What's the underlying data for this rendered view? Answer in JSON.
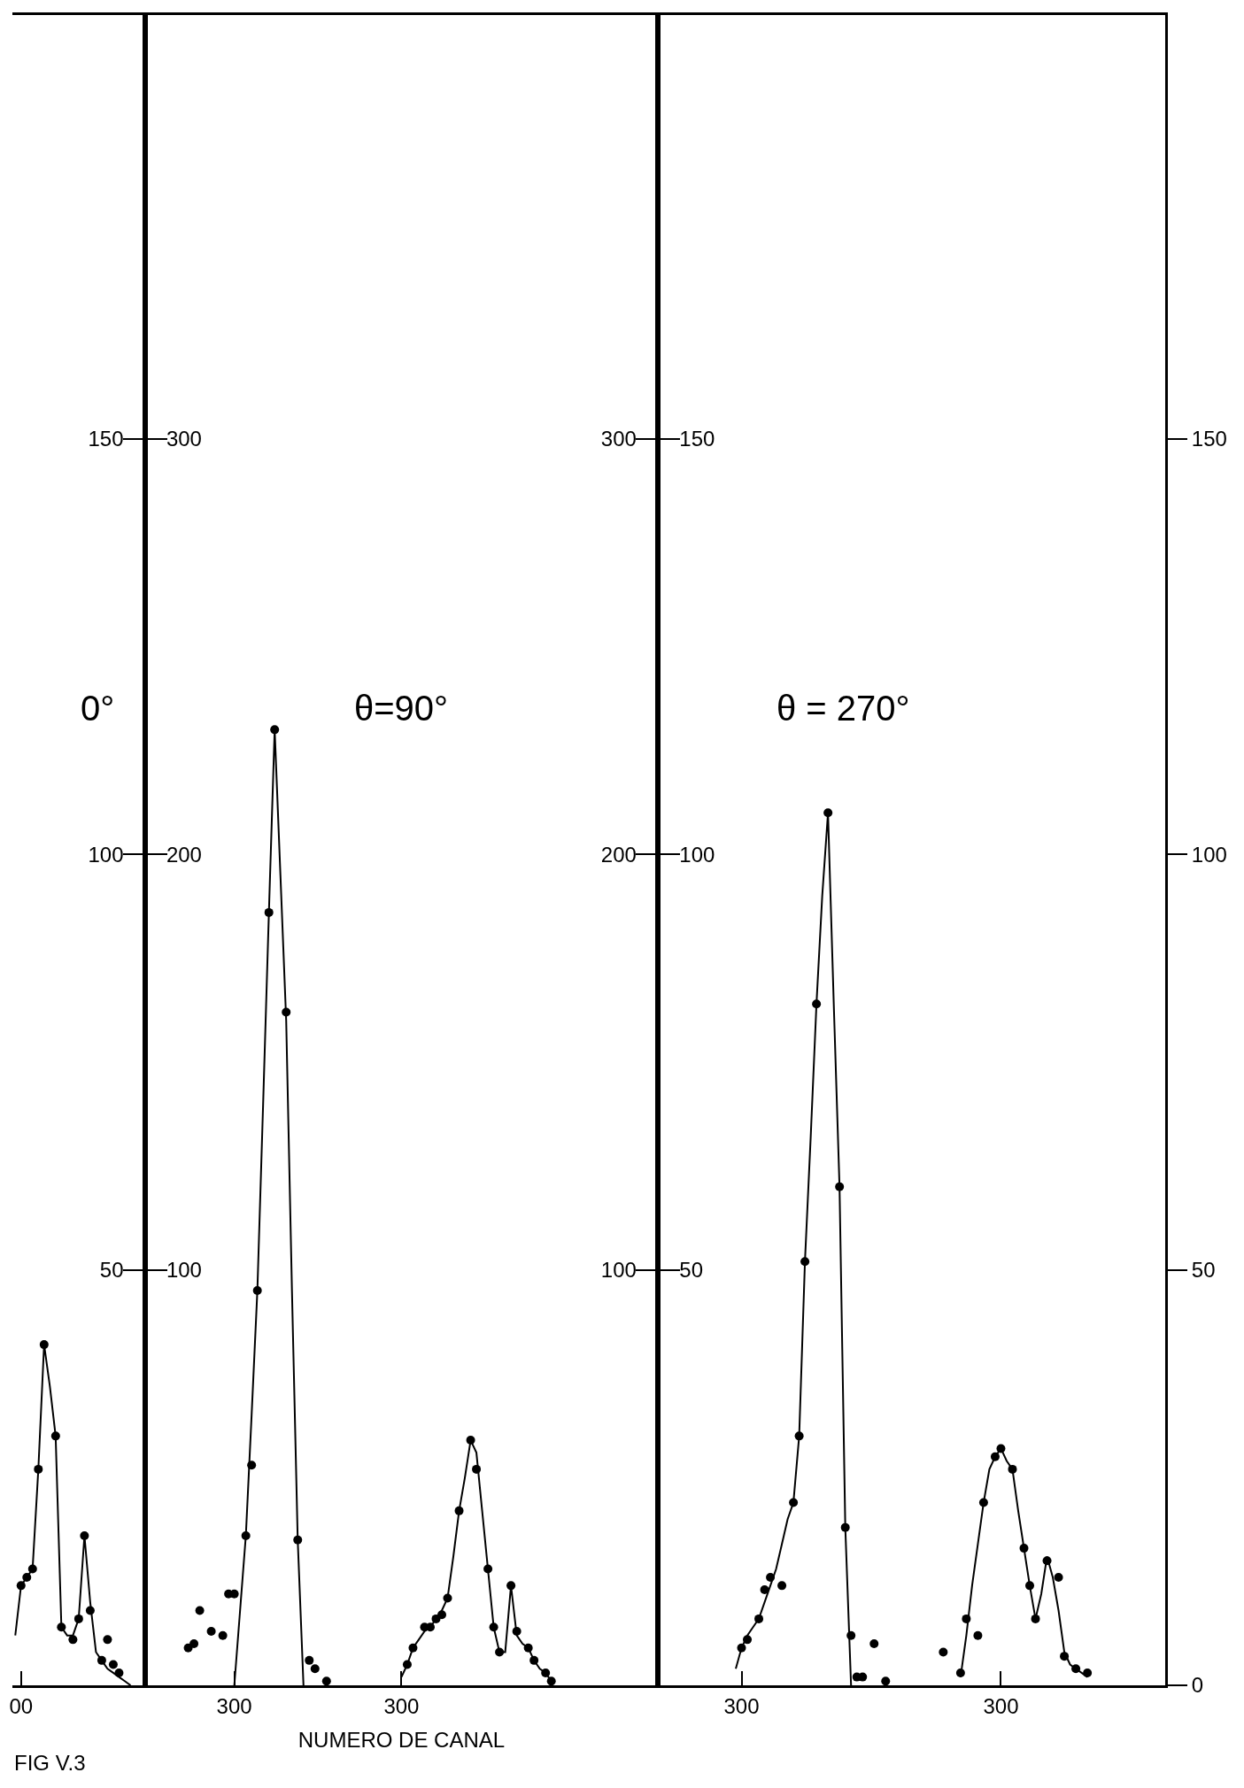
{
  "chart_data": [
    {
      "type": "scatter",
      "categories": [
        null,
        "00",
        null,
        null,
        null,
        null,
        null,
        null,
        null,
        null,
        null,
        null,
        null,
        null,
        null,
        null,
        null,
        null,
        null,
        null,
        null,
        null,
        null
      ],
      "y2lim": [
        0,
        201
      ],
      "y2ticks": [
        50,
        100,
        150
      ],
      "annotations": [
        "0°",
        "FIG V.3"
      ],
      "series": [
        {
          "type": "scatter",
          "axis": "y2",
          "color": "#000000",
          "marker": "circle",
          "values": [
            null,
            12,
            13,
            14,
            26,
            41,
            null,
            30,
            7,
            null,
            5.5,
            8,
            18,
            9,
            null,
            3,
            5.5,
            2.5,
            1.5,
            null,
            null,
            null,
            null
          ]
        },
        {
          "type": "line",
          "axis": "y2",
          "color": "#000000",
          "marker": "none",
          "values": [
            6,
            12,
            13,
            14,
            26,
            41,
            36,
            30,
            7,
            6,
            6,
            8,
            18,
            10,
            4,
            3,
            2,
            1.5,
            1,
            0.5,
            0,
            null,
            null
          ]
        }
      ]
    },
    {
      "type": "scatter",
      "categories": [
        null,
        null,
        null,
        null,
        null,
        null,
        null,
        null,
        null,
        null,
        null,
        null,
        null,
        null,
        null,
        "300",
        null,
        null,
        null,
        null,
        null,
        null,
        null,
        null,
        null,
        null,
        null,
        null,
        null,
        null,
        null,
        null,
        null,
        null,
        null,
        null,
        null,
        null,
        null,
        null,
        null,
        null,
        null,
        null,
        "300",
        null,
        null,
        null,
        null,
        null,
        null,
        null,
        null,
        null,
        null,
        null,
        null,
        null,
        null,
        null,
        null,
        null,
        null,
        null,
        null,
        null,
        null,
        null,
        null,
        null,
        null,
        null,
        null,
        null,
        null,
        null,
        null,
        null,
        null,
        null,
        null,
        null,
        null,
        null,
        null,
        null,
        null,
        null,
        null
      ],
      "ylim": [
        0,
        402
      ],
      "yticks": [
        100,
        200,
        300
      ],
      "y2lim": [
        0,
        402
      ],
      "y2ticks": [
        100,
        200,
        300
      ],
      "xlabel": "NUMERO DE CANAL",
      "annotations": [
        "θ=90°"
      ],
      "series": [
        {
          "type": "scatter",
          "color": "#000000",
          "marker": "circle",
          "values": [
            null,
            null,
            null,
            null,
            null,
            null,
            null,
            9,
            10,
            18,
            null,
            13,
            null,
            12,
            22,
            22,
            null,
            36,
            53,
            95,
            null,
            186,
            230,
            null,
            162,
            null,
            35,
            null,
            6,
            4,
            null,
            1,
            null,
            null,
            null,
            null,
            null,
            null,
            null,
            null,
            null,
            null,
            null,
            null,
            null,
            5,
            9,
            null,
            14,
            14,
            16,
            17,
            21,
            null,
            42,
            null,
            59,
            52,
            null,
            28,
            14,
            8,
            null,
            24,
            13,
            null,
            9,
            6,
            null,
            3,
            1,
            null,
            null,
            null,
            null,
            null,
            null,
            null,
            null,
            null,
            null,
            null,
            null,
            null,
            null,
            null,
            null,
            null,
            null
          ]
        },
        {
          "type": "line",
          "color": "#000000",
          "marker": "none",
          "values": [
            null,
            null,
            null,
            null,
            null,
            null,
            null,
            null,
            null,
            null,
            null,
            null,
            null,
            null,
            null,
            0,
            18,
            36,
            65,
            95,
            140,
            186,
            230,
            195,
            160,
            95,
            35,
            0,
            null,
            null,
            null,
            null,
            null,
            null,
            null,
            null,
            null,
            null,
            null,
            null,
            null,
            null,
            null,
            null,
            2,
            5,
            9,
            11,
            13,
            14,
            16,
            18,
            21,
            31,
            42,
            50,
            59,
            56,
            42,
            28,
            14,
            8,
            8,
            24,
            12,
            10,
            9,
            6,
            4,
            3,
            1,
            null,
            null,
            null,
            null,
            null,
            null,
            null,
            null,
            null,
            null,
            null,
            null,
            null,
            null,
            null,
            null,
            null,
            null
          ]
        }
      ]
    },
    {
      "type": "scatter",
      "categories": [
        null,
        null,
        null,
        null,
        null,
        null,
        null,
        null,
        null,
        null,
        null,
        null,
        null,
        null,
        "300",
        null,
        null,
        null,
        null,
        null,
        null,
        null,
        null,
        null,
        null,
        null,
        null,
        null,
        null,
        null,
        null,
        null,
        null,
        null,
        null,
        null,
        null,
        null,
        null,
        null,
        null,
        null,
        null,
        null,
        null,
        null,
        null,
        null,
        null,
        null,
        null,
        null,
        null,
        null,
        null,
        null,
        null,
        null,
        null,
        "300",
        null,
        null,
        null,
        null,
        null,
        null,
        null,
        null,
        null,
        null,
        null,
        null,
        null,
        null,
        null,
        null,
        null,
        null,
        null,
        null,
        null,
        null,
        null,
        null,
        null,
        null,
        null,
        null
      ],
      "ylim": [
        0,
        201
      ],
      "yticks": [
        50,
        100,
        150
      ],
      "y2lim": [
        0,
        201
      ],
      "y2ticks": [
        0,
        50,
        100,
        150
      ],
      "annotations": [
        "θ = 270°"
      ],
      "series": [
        {
          "type": "scatter",
          "color": "#000000",
          "marker": "circle",
          "values": [
            null,
            null,
            null,
            null,
            null,
            null,
            null,
            null,
            null,
            null,
            null,
            null,
            null,
            null,
            4.5,
            5.5,
            null,
            8,
            11.5,
            13,
            null,
            12,
            null,
            22,
            30,
            51,
            null,
            82,
            null,
            105,
            null,
            60,
            19,
            6,
            1,
            1,
            null,
            5,
            null,
            0.5,
            null,
            null,
            null,
            null,
            null,
            null,
            null,
            null,
            null,
            4,
            null,
            null,
            1.5,
            8,
            null,
            6,
            22,
            null,
            27.5,
            28.5,
            null,
            26,
            null,
            16.5,
            12,
            8,
            null,
            15,
            null,
            13,
            3.5,
            null,
            2,
            null,
            1.5,
            null,
            null,
            null,
            null,
            null,
            null,
            null,
            null,
            null,
            null,
            null,
            null,
            null
          ]
        },
        {
          "type": "line",
          "color": "#000000",
          "marker": "none",
          "values": [
            null,
            null,
            null,
            null,
            null,
            null,
            null,
            null,
            null,
            null,
            null,
            null,
            null,
            2,
            4.5,
            6,
            7,
            8,
            10,
            12,
            14,
            17,
            20,
            22,
            30,
            51,
            66,
            82,
            95,
            105,
            82,
            60,
            19,
            0,
            null,
            null,
            null,
            null,
            null,
            null,
            null,
            null,
            null,
            null,
            null,
            null,
            null,
            null,
            null,
            null,
            null,
            null,
            1,
            6,
            12,
            17,
            22,
            26,
            27.5,
            28.5,
            27,
            26,
            21,
            16.5,
            12,
            8,
            11,
            15.5,
            13,
            9,
            4,
            2.5,
            2,
            1.5,
            1,
            null,
            null,
            null,
            null,
            null,
            null,
            null,
            null,
            null,
            null,
            null,
            null,
            null
          ]
        }
      ]
    }
  ]
}
